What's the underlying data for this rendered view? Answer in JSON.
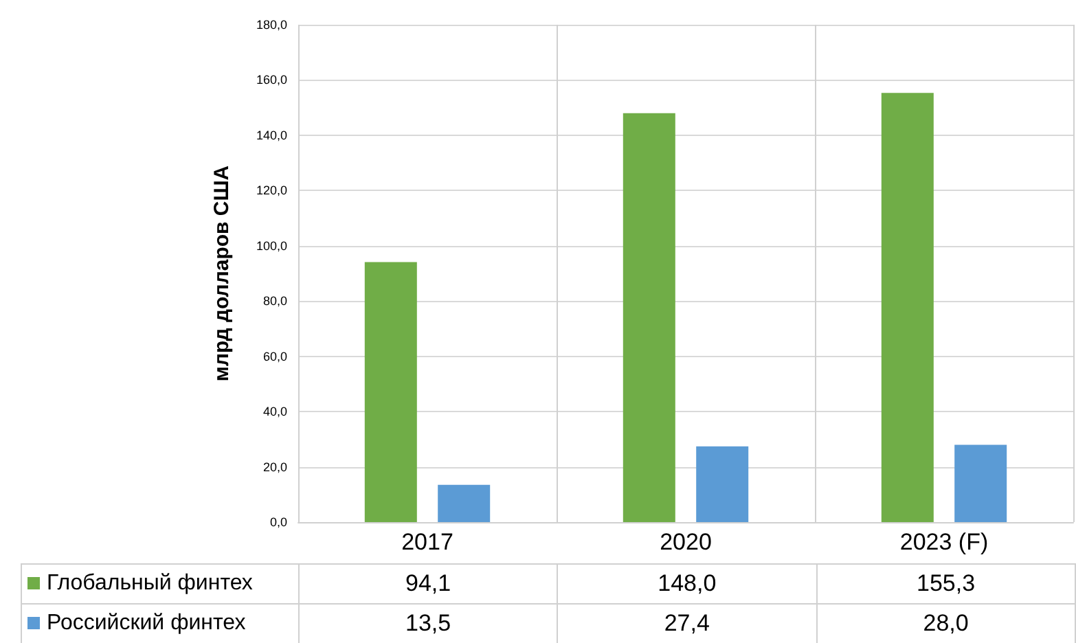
{
  "chart_data": {
    "type": "bar",
    "ylabel": "млрд долларов США",
    "categories": [
      "2017",
      "2020",
      "2023 (F)"
    ],
    "series": [
      {
        "name": "Глобальный финтех",
        "color": "#70ad47",
        "values": [
          94.1,
          148.0,
          155.3
        ],
        "value_labels": [
          "94,1",
          "148,0",
          "155,3"
        ]
      },
      {
        "name": "Российский финтех",
        "color": "#5b9bd5",
        "values": [
          13.5,
          27.4,
          28.0
        ],
        "value_labels": [
          "13,5",
          "27,4",
          "28,0"
        ]
      }
    ],
    "ylim": [
      0,
      180
    ],
    "yticks": [
      {
        "value": 0,
        "label": "0,0"
      },
      {
        "value": 20,
        "label": "20,0"
      },
      {
        "value": 40,
        "label": "40,0"
      },
      {
        "value": 60,
        "label": "60,0"
      },
      {
        "value": 80,
        "label": "80,0"
      },
      {
        "value": 100,
        "label": "100,0"
      },
      {
        "value": 120,
        "label": "120,0"
      },
      {
        "value": 140,
        "label": "140,0"
      },
      {
        "value": 160,
        "label": "160,0"
      },
      {
        "value": 180,
        "label": "180,0"
      }
    ],
    "grid": true,
    "legend": "bottom left"
  }
}
